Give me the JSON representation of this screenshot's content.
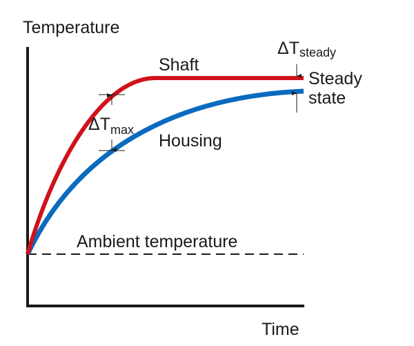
{
  "labels": {
    "y_axis": "Temperature",
    "x_axis": "Time",
    "shaft": "Shaft",
    "housing": "Housing",
    "ambient": "Ambient temperature",
    "steady_line1": "Steady",
    "steady_line2": "state",
    "delta_max_symbol": "ΔT",
    "delta_max_sub": "max",
    "delta_steady_symbol": "ΔT",
    "delta_steady_sub": "steady"
  },
  "colors": {
    "shaft": "#d0121b",
    "housing": "#0a6bbf",
    "axes": "#1a1a1a"
  }
}
